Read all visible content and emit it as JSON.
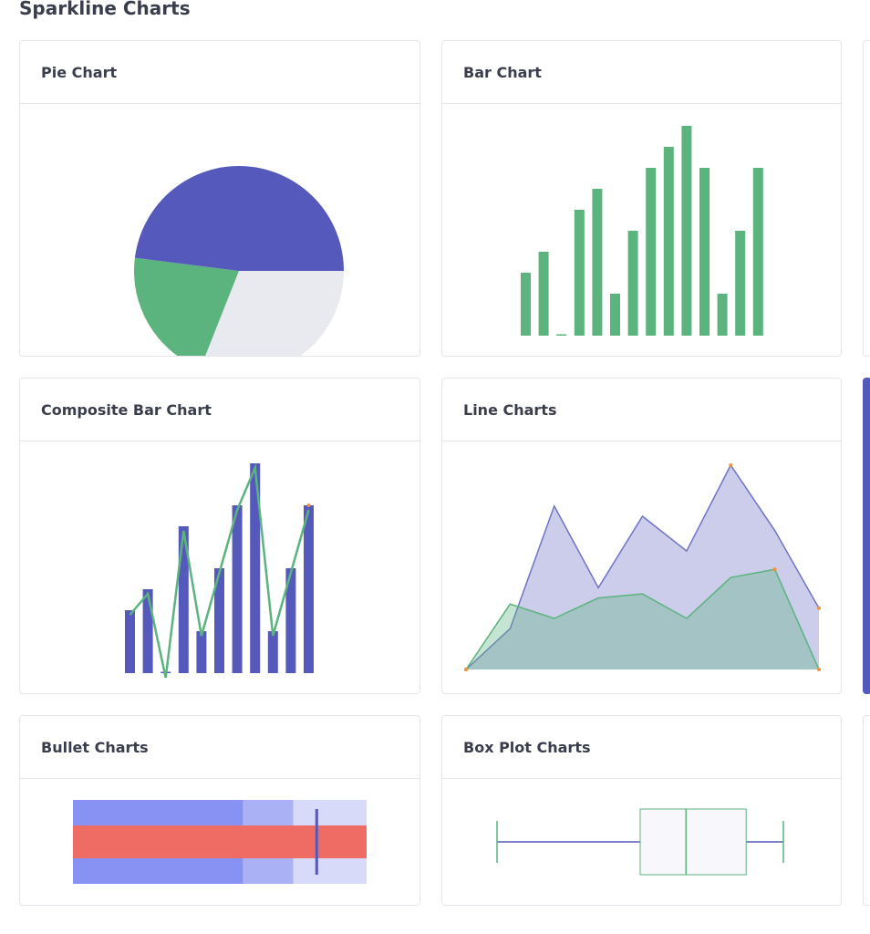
{
  "page": {
    "title": "Sparkline Charts"
  },
  "colors": {
    "indigo": "#5459bb",
    "green": "#5bb37e",
    "light_gray": "#e9eaf0",
    "orange": "#f0923a",
    "bullet_bad": "#8892f3",
    "bullet_ok": "#abb1f5",
    "bullet_good": "#d7daf9",
    "bullet_value": "#ee6c63"
  },
  "chart_data": [
    {
      "type": "pie",
      "title": "Pie Chart",
      "values": [
        31,
        21,
        48
      ],
      "colors": [
        "#e9eaf0",
        "#5bb37e",
        "#5459bb"
      ]
    },
    {
      "type": "bar",
      "title": "Bar Chart",
      "values": [
        3,
        4,
        0,
        6,
        7,
        2,
        5,
        8,
        9,
        10,
        8,
        2,
        5,
        8
      ],
      "ylim": [
        0,
        10
      ]
    },
    {
      "type": "bar",
      "title": "Composite Bar Chart",
      "series": [
        {
          "type": "bar",
          "values": [
            3,
            4,
            0,
            7,
            2,
            5,
            8,
            10,
            2,
            5,
            8
          ]
        },
        {
          "type": "line",
          "values": [
            3,
            4,
            0,
            7,
            2,
            5,
            8,
            10,
            2,
            5,
            8
          ]
        }
      ],
      "ylim": [
        0,
        10
      ]
    },
    {
      "type": "area",
      "title": "Line Charts",
      "series": [
        {
          "values": [
            0,
            2,
            8,
            4,
            7.5,
            5.8,
            10,
            6.8,
            3
          ]
        },
        {
          "values": [
            0,
            3.2,
            2.5,
            3.5,
            3.7,
            2.5,
            4.5,
            4.9,
            0
          ]
        }
      ],
      "ylim": [
        0,
        10
      ]
    },
    {
      "type": "bullet",
      "title": "Bullet Charts",
      "ranges": [
        58,
        75,
        100
      ],
      "value": 100,
      "target": 83,
      "xlim": [
        0,
        100
      ]
    },
    {
      "type": "box",
      "title": "Box Plot Charts",
      "min": 0,
      "q1": 50,
      "median": 66,
      "q3": 87,
      "max": 100
    }
  ]
}
